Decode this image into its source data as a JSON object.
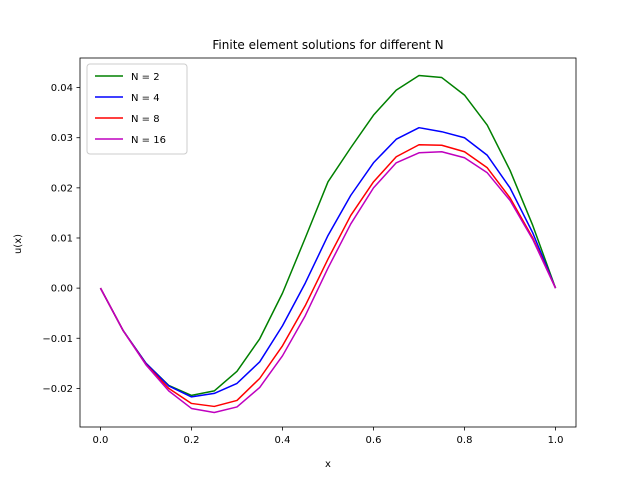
{
  "chart_data": {
    "type": "line",
    "title": "Finite element solutions for different N",
    "xlabel": "x",
    "ylabel": "u(x)",
    "xlim": [
      -0.045,
      1.045
    ],
    "ylim": [
      -0.0277,
      0.0459
    ],
    "xticks": [
      0.0,
      0.2,
      0.4,
      0.6,
      0.8,
      1.0
    ],
    "xtick_labels": [
      "0.0",
      "0.2",
      "0.4",
      "0.6",
      "0.8",
      "1.0"
    ],
    "yticks": [
      -0.02,
      -0.01,
      0.0,
      0.01,
      0.02,
      0.03,
      0.04
    ],
    "ytick_labels": [
      "−0.02",
      "−0.01",
      "0.00",
      "0.01",
      "0.02",
      "0.03",
      "0.04"
    ],
    "grid": false,
    "legend_position": "upper-left",
    "series": [
      {
        "name": "N = 2",
        "color": "#008000",
        "x": [
          0.0,
          0.05,
          0.1,
          0.15,
          0.2,
          0.25,
          0.3,
          0.35,
          0.4,
          0.45,
          0.5,
          0.55,
          0.6,
          0.65,
          0.7,
          0.75,
          0.8,
          0.85,
          0.9,
          0.95,
          1.0
        ],
        "y": [
          0.0,
          -0.0085,
          -0.015,
          -0.0194,
          -0.0214,
          -0.0205,
          -0.0166,
          -0.0101,
          -0.001,
          0.01,
          0.0212,
          0.028,
          0.0345,
          0.0395,
          0.0424,
          0.042,
          0.0385,
          0.0325,
          0.0235,
          0.0125,
          0.0
        ]
      },
      {
        "name": "N = 4",
        "color": "#0000ff",
        "x": [
          0.0,
          0.05,
          0.1,
          0.15,
          0.2,
          0.25,
          0.3,
          0.35,
          0.4,
          0.45,
          0.5,
          0.55,
          0.6,
          0.65,
          0.7,
          0.75,
          0.8,
          0.85,
          0.9,
          0.95,
          1.0
        ],
        "y": [
          0.0,
          -0.0085,
          -0.015,
          -0.0195,
          -0.0217,
          -0.021,
          -0.019,
          -0.0147,
          -0.0075,
          0.001,
          0.0105,
          0.0185,
          0.025,
          0.0297,
          0.032,
          0.0312,
          0.03,
          0.0265,
          0.02,
          0.011,
          0.0
        ]
      },
      {
        "name": "N = 8",
        "color": "#ff0000",
        "x": [
          0.0,
          0.05,
          0.1,
          0.15,
          0.2,
          0.25,
          0.3,
          0.35,
          0.4,
          0.45,
          0.5,
          0.55,
          0.6,
          0.65,
          0.7,
          0.75,
          0.8,
          0.85,
          0.9,
          0.95,
          1.0
        ],
        "y": [
          0.0,
          -0.0085,
          -0.0152,
          -0.02,
          -0.023,
          -0.0236,
          -0.0224,
          -0.018,
          -0.0115,
          -0.0035,
          0.0058,
          0.0145,
          0.0212,
          0.0262,
          0.0286,
          0.0285,
          0.0272,
          0.024,
          0.018,
          0.01,
          0.0
        ]
      },
      {
        "name": "N = 16",
        "color": "#bf00bf",
        "x": [
          0.0,
          0.05,
          0.1,
          0.15,
          0.2,
          0.25,
          0.3,
          0.35,
          0.4,
          0.45,
          0.5,
          0.55,
          0.6,
          0.65,
          0.7,
          0.75,
          0.8,
          0.85,
          0.9,
          0.95,
          1.0
        ],
        "y": [
          0.0,
          -0.0085,
          -0.0153,
          -0.0205,
          -0.024,
          -0.0248,
          -0.0237,
          -0.0198,
          -0.0135,
          -0.0055,
          0.004,
          0.0128,
          0.02,
          0.025,
          0.027,
          0.0272,
          0.026,
          0.023,
          0.0175,
          0.0097,
          0.0
        ]
      }
    ]
  }
}
